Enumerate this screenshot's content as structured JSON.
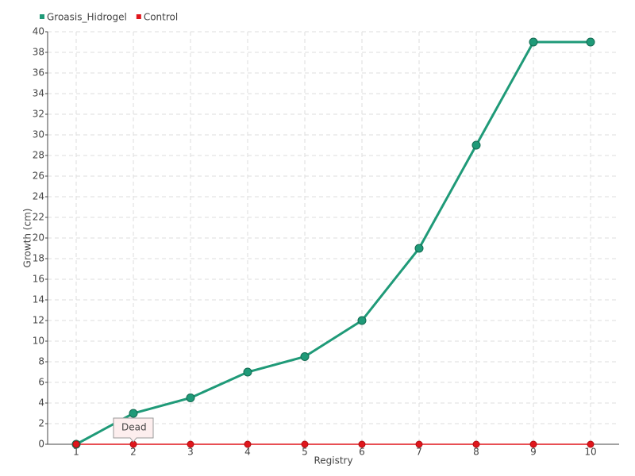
{
  "chart_data": {
    "type": "line",
    "x_label": "Registry",
    "y_label": "Growth (cm)",
    "categories": [
      "1",
      "2",
      "3",
      "4",
      "5",
      "6",
      "7",
      "8",
      "9",
      "10"
    ],
    "series": [
      {
        "name": "Groasis_Hidrogel",
        "color": "#1f9a78",
        "values": [
          0,
          3,
          4.5,
          7,
          8.5,
          12,
          19,
          29,
          39,
          39
        ]
      },
      {
        "name": "Control",
        "color": "#e0161c",
        "values": [
          0,
          0,
          0,
          0,
          0,
          0,
          0,
          0,
          0,
          0
        ]
      }
    ],
    "ylim": [
      0,
      40
    ],
    "yticks": [
      0,
      2,
      4,
      6,
      8,
      10,
      12,
      14,
      16,
      18,
      20,
      22,
      24,
      26,
      28,
      30,
      32,
      34,
      36,
      38,
      40
    ],
    "grid": true,
    "legend": "top-left",
    "annotations": [
      {
        "text": "Dead",
        "x": "2",
        "y": 0
      }
    ]
  }
}
